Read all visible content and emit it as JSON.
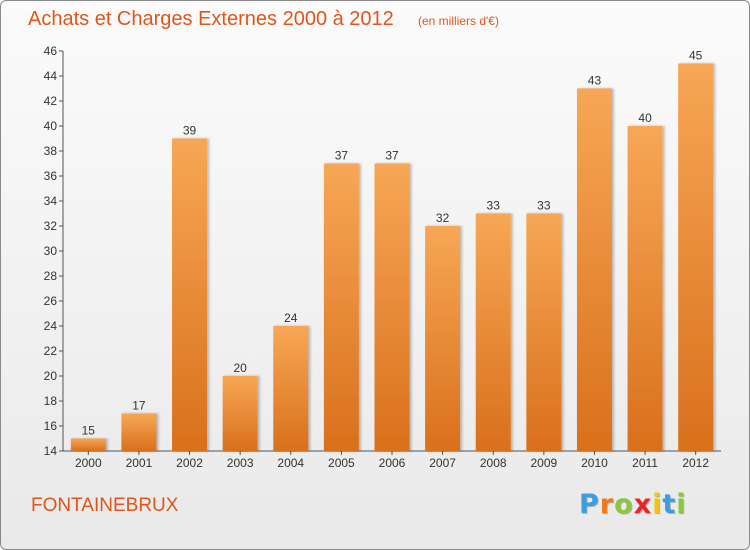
{
  "chart_data": {
    "type": "bar",
    "title": "Achats et Charges Externes 2000 à 2012",
    "subtitle": "(en milliers d'€)",
    "categories": [
      "2000",
      "2001",
      "2002",
      "2003",
      "2004",
      "2005",
      "2006",
      "2007",
      "2008",
      "2009",
      "2010",
      "2011",
      "2012"
    ],
    "values": [
      15,
      17,
      39,
      20,
      24,
      37,
      37,
      32,
      33,
      33,
      43,
      40,
      45
    ],
    "ylim": [
      14,
      46
    ],
    "yticks": [
      14,
      16,
      18,
      20,
      22,
      24,
      26,
      28,
      30,
      32,
      34,
      36,
      38,
      40,
      42,
      44,
      46
    ],
    "grid": false,
    "legend": "none",
    "bar_color": "#f0872a",
    "bar_color_light": "#f7a755",
    "bar_color_dark": "#d9701c"
  },
  "footer": {
    "commune": "FONTAINEBRUX",
    "logo_letters": [
      "P",
      "r",
      "o",
      "x",
      "i",
      "t",
      "i"
    ],
    "logo_colors": [
      "#3a9ee0",
      "#f07a1a",
      "#8cc63f",
      "#e8262a",
      "#f0c419",
      "#3a9ee0",
      "#8cc63f"
    ]
  },
  "colors": {
    "accent": "#e0561a"
  }
}
